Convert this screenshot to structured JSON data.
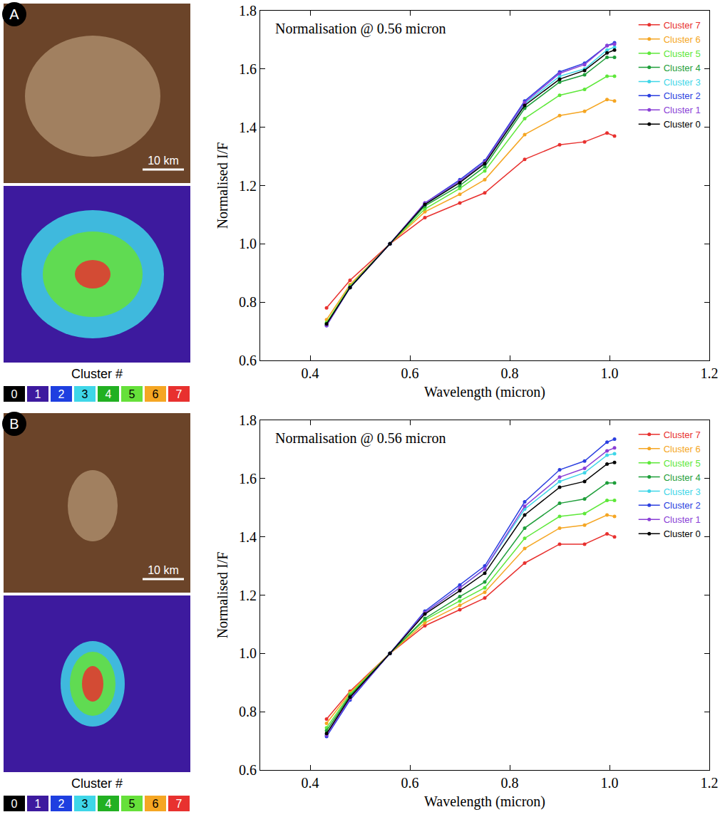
{
  "chart_data": [
    {
      "type": "line",
      "panel": "A",
      "annotations": [
        "Normalisation @ 0.56 micron"
      ],
      "x_label": "Wavelength (micron)",
      "y_label": "Normalised I/F",
      "x": [
        0.433,
        0.48,
        0.56,
        0.63,
        0.7,
        0.75,
        0.83,
        0.9,
        0.95,
        0.995,
        1.01
      ],
      "xlim": [
        0.3,
        1.2
      ],
      "ylim": [
        0.6,
        1.8
      ],
      "xticks": [
        0.4,
        0.6,
        0.8,
        {
          "value": 1,
          "label": "1.0"
        },
        1.2
      ],
      "yticks": [
        0.6,
        0.8,
        {
          "value": 1,
          "label": "1.0"
        },
        1.2,
        1.4,
        1.6,
        1.8
      ],
      "grid": false,
      "legend": "top right",
      "marker": "circle",
      "series": [
        {
          "name": "Cluster 7",
          "color": "#e8312f",
          "values": [
            0.78,
            0.875,
            1.0,
            1.09,
            1.14,
            1.175,
            1.29,
            1.34,
            1.35,
            1.38,
            1.37
          ]
        },
        {
          "name": "Cluster 6",
          "color": "#f5a623",
          "values": [
            0.74,
            0.86,
            1.0,
            1.11,
            1.17,
            1.22,
            1.375,
            1.44,
            1.455,
            1.495,
            1.49
          ]
        },
        {
          "name": "Cluster 5",
          "color": "#5ee83a",
          "values": [
            0.73,
            0.855,
            1.0,
            1.12,
            1.19,
            1.25,
            1.43,
            1.51,
            1.53,
            1.575,
            1.575
          ]
        },
        {
          "name": "Cluster 4",
          "color": "#1e9e3a",
          "values": [
            0.725,
            0.85,
            1.0,
            1.13,
            1.2,
            1.265,
            1.465,
            1.555,
            1.58,
            1.64,
            1.64
          ]
        },
        {
          "name": "Cluster 3",
          "color": "#3fd6e8",
          "values": [
            0.72,
            0.85,
            1.0,
            1.135,
            1.215,
            1.275,
            1.48,
            1.575,
            1.6,
            1.665,
            1.675
          ]
        },
        {
          "name": "Cluster 2",
          "color": "#2b3fe0",
          "values": [
            0.72,
            0.85,
            1.0,
            1.14,
            1.22,
            1.285,
            1.49,
            1.59,
            1.62,
            1.68,
            1.69
          ]
        },
        {
          "name": "Cluster 1",
          "color": "#8a3fd6",
          "values": [
            0.72,
            0.85,
            1.0,
            1.14,
            1.215,
            1.28,
            1.485,
            1.585,
            1.615,
            1.68,
            1.685
          ]
        },
        {
          "name": "Cluster 0",
          "color": "#000000",
          "values": [
            0.725,
            0.85,
            1.0,
            1.135,
            1.21,
            1.275,
            1.475,
            1.565,
            1.595,
            1.655,
            1.665
          ]
        }
      ],
      "scale_bar": "10 km",
      "cluster_legend": {
        "title": "Cluster #",
        "labels": [
          0,
          1,
          2,
          3,
          4,
          5,
          6,
          7
        ],
        "colors": [
          "#000000",
          "#3d1a9e",
          "#1e3fe0",
          "#3fd6e8",
          "#22b022",
          "#66e03a",
          "#f5a623",
          "#e8312f"
        ]
      }
    },
    {
      "type": "line",
      "panel": "B",
      "annotations": [
        "Normalisation @ 0.56 micron"
      ],
      "x_label": "Wavelength (micron)",
      "y_label": "Normalised I/F",
      "x": [
        0.433,
        0.48,
        0.56,
        0.63,
        0.7,
        0.75,
        0.83,
        0.9,
        0.95,
        0.995,
        1.01
      ],
      "xlim": [
        0.3,
        1.2
      ],
      "ylim": [
        0.6,
        1.8
      ],
      "xticks": [
        0.4,
        0.6,
        0.8,
        {
          "value": 1,
          "label": "1.0"
        },
        1.2
      ],
      "yticks": [
        0.6,
        0.8,
        {
          "value": 1,
          "label": "1.0"
        },
        1.2,
        1.4,
        1.6,
        1.8
      ],
      "grid": false,
      "legend": "top right",
      "marker": "circle",
      "series": [
        {
          "name": "Cluster 7",
          "color": "#e8312f",
          "values": [
            0.775,
            0.87,
            1.0,
            1.095,
            1.15,
            1.19,
            1.31,
            1.375,
            1.375,
            1.41,
            1.4
          ]
        },
        {
          "name": "Cluster 6",
          "color": "#f5a623",
          "values": [
            0.76,
            0.865,
            1.0,
            1.105,
            1.165,
            1.21,
            1.36,
            1.43,
            1.44,
            1.475,
            1.47
          ]
        },
        {
          "name": "Cluster 5",
          "color": "#5ee83a",
          "values": [
            0.745,
            0.86,
            1.0,
            1.115,
            1.18,
            1.225,
            1.395,
            1.47,
            1.48,
            1.525,
            1.525
          ]
        },
        {
          "name": "Cluster 4",
          "color": "#1e9e3a",
          "values": [
            0.735,
            0.855,
            1.0,
            1.12,
            1.195,
            1.245,
            1.43,
            1.515,
            1.53,
            1.585,
            1.585
          ]
        },
        {
          "name": "Cluster 3",
          "color": "#3fd6e8",
          "values": [
            0.72,
            0.845,
            1.0,
            1.14,
            1.225,
            1.29,
            1.495,
            1.59,
            1.62,
            1.68,
            1.685
          ]
        },
        {
          "name": "Cluster 2",
          "color": "#2b3fe0",
          "values": [
            0.715,
            0.84,
            1.0,
            1.145,
            1.235,
            1.3,
            1.52,
            1.63,
            1.66,
            1.725,
            1.735
          ]
        },
        {
          "name": "Cluster 1",
          "color": "#8a3fd6",
          "values": [
            0.72,
            0.845,
            1.0,
            1.14,
            1.225,
            1.29,
            1.505,
            1.605,
            1.635,
            1.695,
            1.705
          ]
        },
        {
          "name": "Cluster 0",
          "color": "#000000",
          "values": [
            0.725,
            0.85,
            1.0,
            1.135,
            1.215,
            1.275,
            1.475,
            1.57,
            1.59,
            1.65,
            1.655
          ]
        }
      ],
      "scale_bar": "10 km",
      "cluster_legend": {
        "title": "Cluster #",
        "labels": [
          0,
          1,
          2,
          3,
          4,
          5,
          6,
          7
        ],
        "colors": [
          "#000000",
          "#3d1a9e",
          "#1e3fe0",
          "#3fd6e8",
          "#22b022",
          "#66e03a",
          "#f5a623",
          "#e8312f"
        ]
      }
    }
  ]
}
